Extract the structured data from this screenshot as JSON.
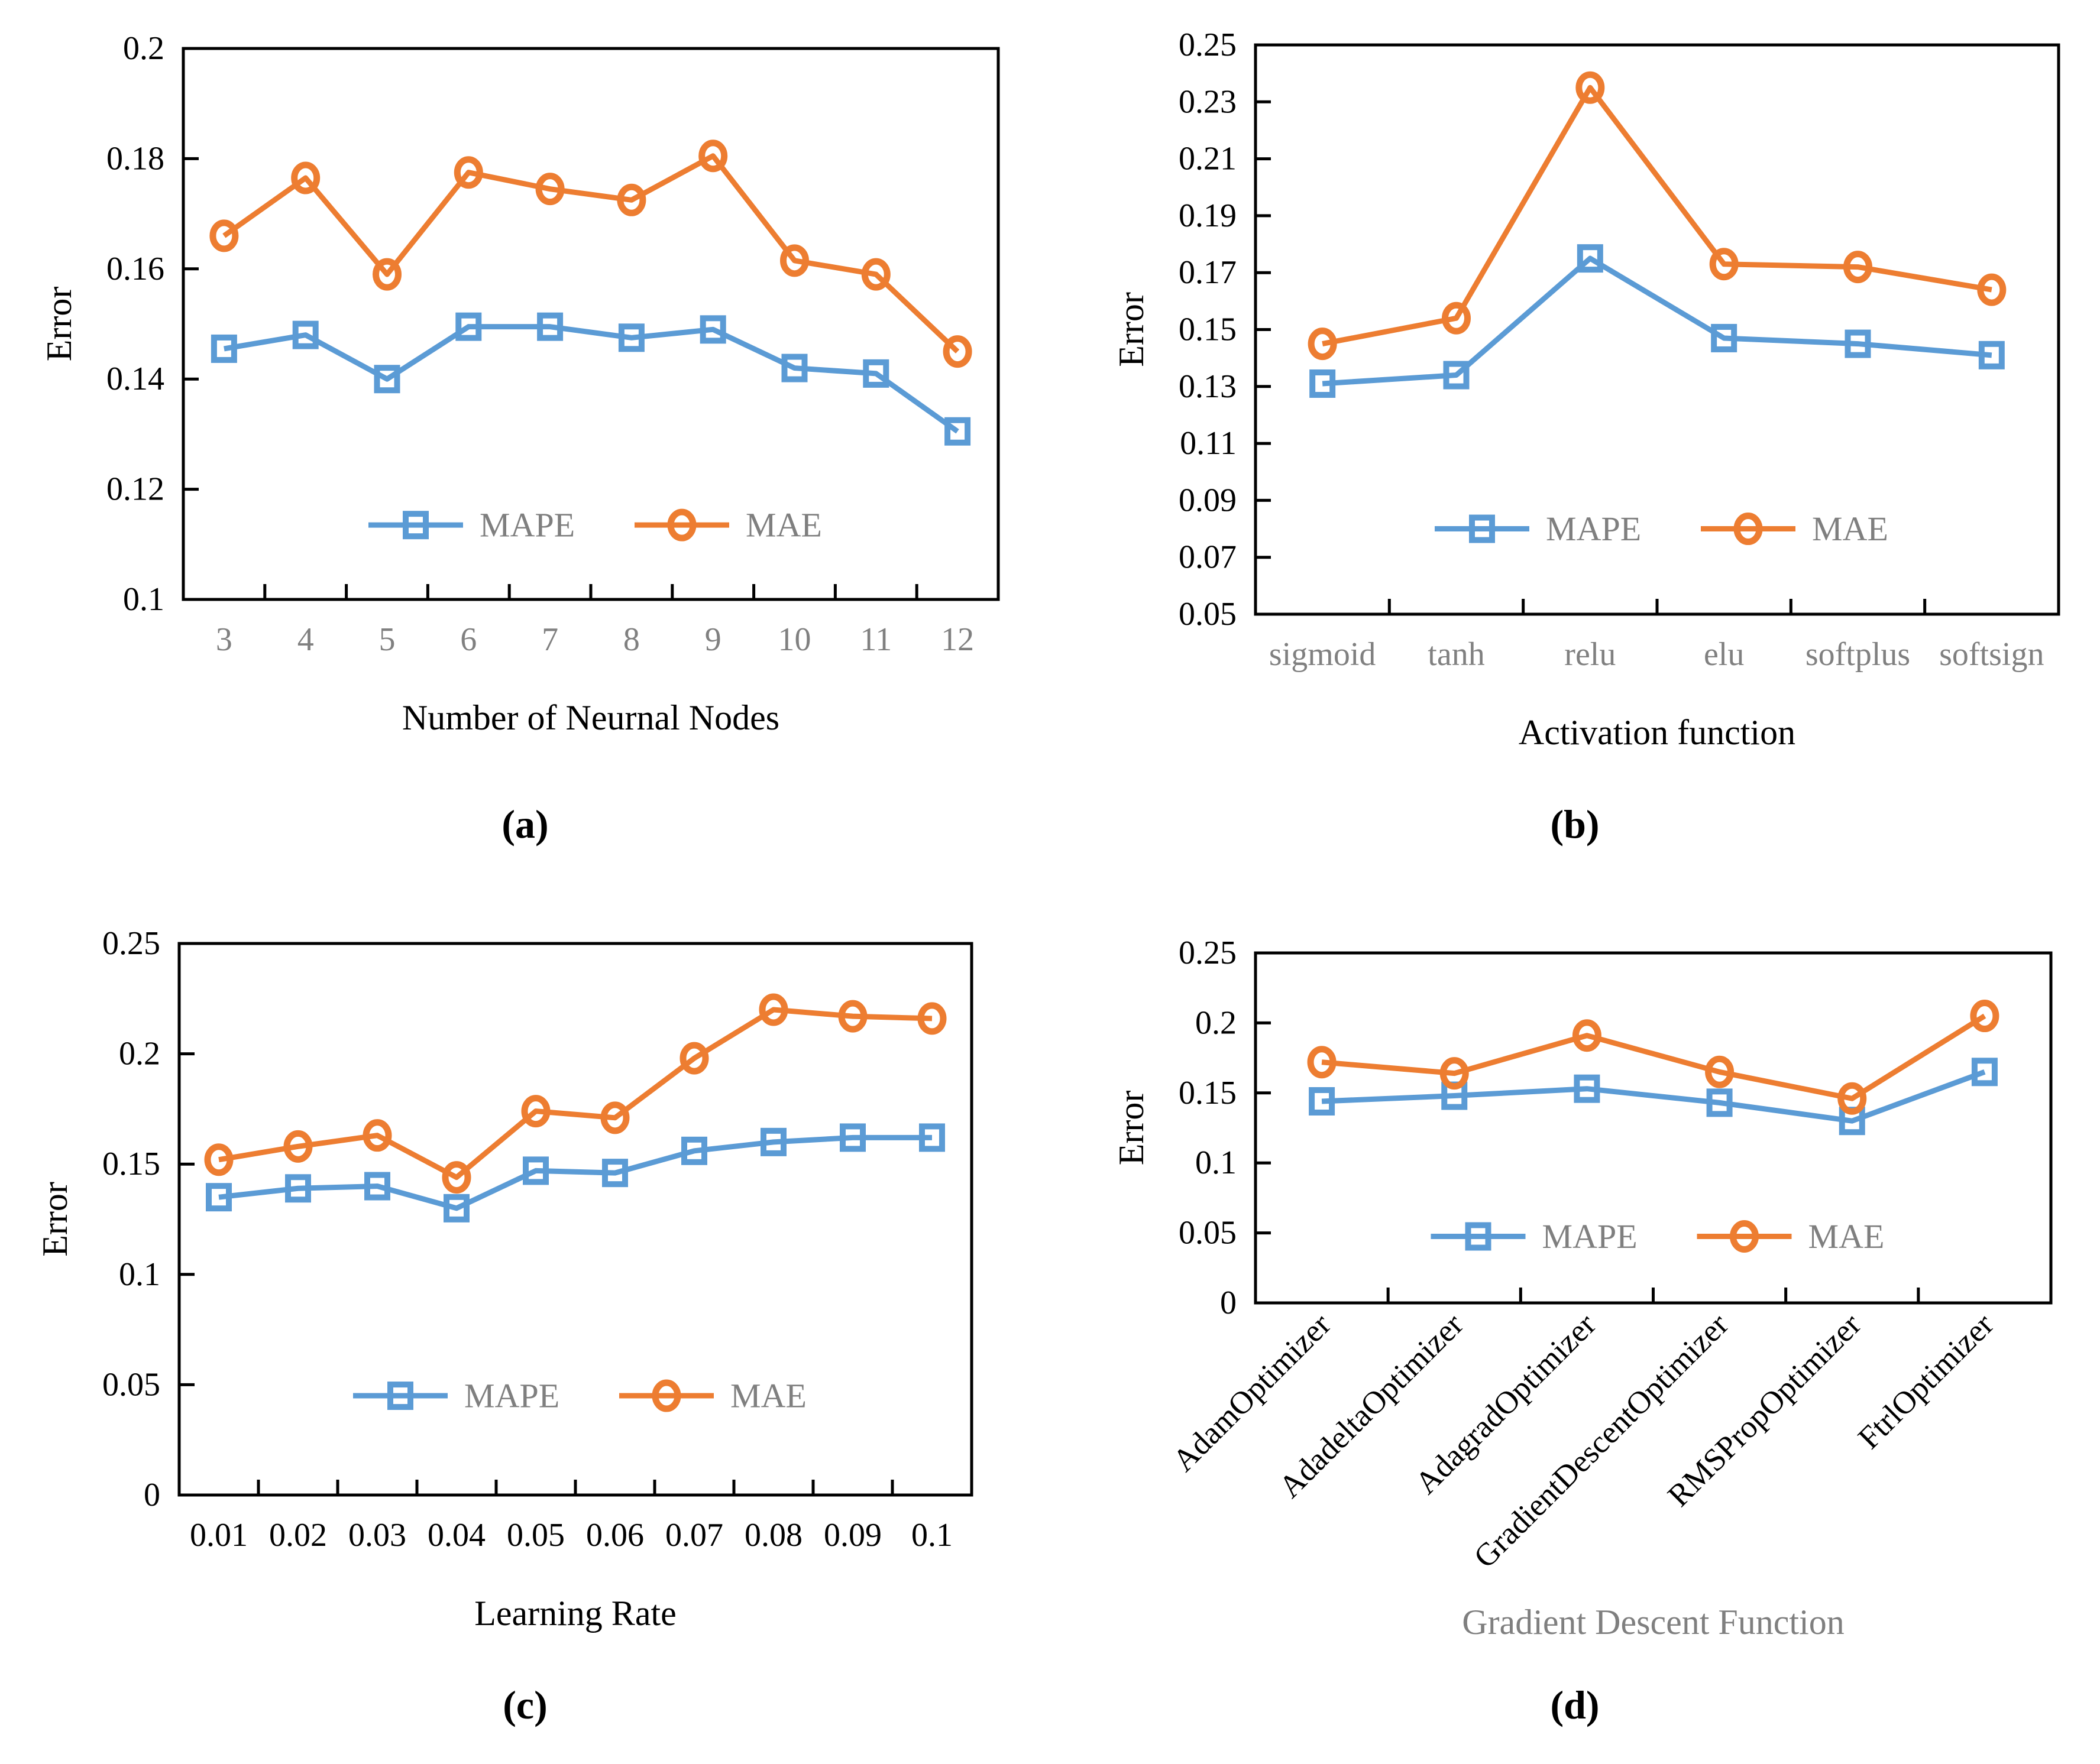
{
  "figure": {
    "captions": [
      "(a)",
      "(b)",
      "(c)",
      "(d)"
    ]
  },
  "colors": {
    "mape": "#5B9BD5",
    "mae": "#ED7D31",
    "legend_text": "#7F7F7F",
    "gray_tick": "#808080",
    "gray_label": "#7F7F7F",
    "black": "#000000"
  },
  "chart_data": [
    {
      "id": "a",
      "type": "line",
      "title": "",
      "xlabel": "Number of Neurnal Nodes",
      "xlabel_color": "#000000",
      "ylabel": "Error",
      "categories": [
        "3",
        "4",
        "5",
        "6",
        "7",
        "8",
        "9",
        "10",
        "11",
        "12"
      ],
      "xtick_color": "#808080",
      "xtick_rotated": false,
      "ylim": [
        0.1,
        0.2
      ],
      "yticks": [
        "0.1",
        "0.12",
        "0.14",
        "0.16",
        "0.18",
        "0.2"
      ],
      "grid": false,
      "legend_position": "inside-bottom-center",
      "series": [
        {
          "name": "MAPE",
          "marker": "square",
          "color_key": "mape",
          "values": [
            0.1455,
            0.148,
            0.14,
            0.1495,
            0.1495,
            0.1475,
            0.149,
            0.142,
            0.141,
            0.1305
          ]
        },
        {
          "name": "MAE",
          "marker": "circle",
          "color_key": "mae",
          "values": [
            0.166,
            0.1765,
            0.159,
            0.1775,
            0.1745,
            0.1725,
            0.1805,
            0.1615,
            0.159,
            0.145
          ]
        }
      ]
    },
    {
      "id": "b",
      "type": "line",
      "title": "",
      "xlabel": "Activation function",
      "xlabel_color": "#000000",
      "ylabel": "Error",
      "categories": [
        "sigmoid",
        "tanh",
        "relu",
        "elu",
        "softplus",
        "softsign"
      ],
      "xtick_color": "#808080",
      "xtick_rotated": false,
      "ylim": [
        0.05,
        0.25
      ],
      "yticks": [
        "0.05",
        "0.07",
        "0.09",
        "0.11",
        "0.13",
        "0.15",
        "0.17",
        "0.19",
        "0.21",
        "0.23",
        "0.25"
      ],
      "grid": false,
      "legend_position": "inside-bottom-center",
      "series": [
        {
          "name": "MAPE",
          "marker": "square",
          "color_key": "mape",
          "values": [
            0.131,
            0.134,
            0.175,
            0.147,
            0.145,
            0.141
          ]
        },
        {
          "name": "MAE",
          "marker": "circle",
          "color_key": "mae",
          "values": [
            0.145,
            0.154,
            0.235,
            0.173,
            0.172,
            0.164
          ]
        }
      ]
    },
    {
      "id": "c",
      "type": "line",
      "title": "",
      "xlabel": "Learning Rate",
      "xlabel_color": "#000000",
      "ylabel": "Error",
      "categories": [
        "0.01",
        "0.02",
        "0.03",
        "0.04",
        "0.05",
        "0.06",
        "0.07",
        "0.08",
        "0.09",
        "0.1"
      ],
      "xtick_color": "#000000",
      "xtick_rotated": false,
      "ylim": [
        0,
        0.25
      ],
      "yticks": [
        "0",
        "0.05",
        "0.1",
        "0.15",
        "0.2",
        "0.25"
      ],
      "grid": false,
      "legend_position": "inside-bottom-center",
      "series": [
        {
          "name": "MAPE",
          "marker": "square",
          "color_key": "mape",
          "values": [
            0.135,
            0.139,
            0.14,
            0.13,
            0.147,
            0.146,
            0.156,
            0.16,
            0.162,
            0.162
          ]
        },
        {
          "name": "MAE",
          "marker": "circle",
          "color_key": "mae",
          "values": [
            0.152,
            0.158,
            0.163,
            0.144,
            0.174,
            0.171,
            0.198,
            0.22,
            0.217,
            0.216
          ]
        }
      ]
    },
    {
      "id": "d",
      "type": "line",
      "title": "",
      "xlabel": "Gradient Descent Function",
      "xlabel_color": "#7F7F7F",
      "ylabel": "Error",
      "categories": [
        "AdamOptimizer",
        "AdadeltaOptimizer",
        "AdagradOptimizer",
        "GradientDescentOptimizer",
        "RMSPropOptimizer",
        "FtrlOptimizer"
      ],
      "xtick_color": "#000000",
      "xtick_rotated": true,
      "ylim": [
        0,
        0.25
      ],
      "yticks": [
        "0",
        "0.05",
        "0.1",
        "0.15",
        "0.2",
        "0.25"
      ],
      "grid": false,
      "legend_position": "inside-bottom-center",
      "series": [
        {
          "name": "MAPE",
          "marker": "square",
          "color_key": "mape",
          "values": [
            0.144,
            0.148,
            0.153,
            0.143,
            0.13,
            0.165
          ]
        },
        {
          "name": "MAE",
          "marker": "circle",
          "color_key": "mae",
          "values": [
            0.172,
            0.164,
            0.191,
            0.165,
            0.146,
            0.205
          ]
        }
      ]
    }
  ]
}
